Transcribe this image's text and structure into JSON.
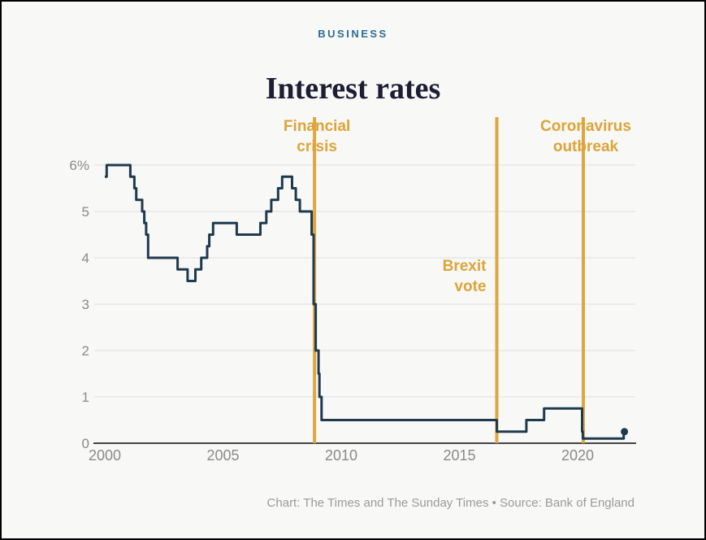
{
  "page": {
    "kicker": "BUSINESS",
    "title": "Interest rates",
    "footer": "Chart: The Times and The Sunday Times • Source: Bank of England"
  },
  "colors": {
    "accent_gold": "#dfa640",
    "line_navy": "#1f3a4d",
    "kicker_blue": "#2d6e93",
    "title_ink": "#1d1d33",
    "tick_gray": "#8a8a8a",
    "grid_gray": "#e3e3e2",
    "baseline_dark": "#454545",
    "background": "#f8f8f7"
  },
  "chart_data": {
    "type": "line",
    "line_style": "step-after",
    "title": "Interest rates",
    "xlabel": "",
    "ylabel": "",
    "ylim": [
      0,
      6
    ],
    "xlim": [
      1999.5,
      2022.4
    ],
    "grid": "horizontal-only",
    "legend": "none",
    "yticks": [
      {
        "value": 6,
        "label": "6%"
      },
      {
        "value": 5,
        "label": "5"
      },
      {
        "value": 4,
        "label": "4"
      },
      {
        "value": 3,
        "label": "3"
      },
      {
        "value": 2,
        "label": "2"
      },
      {
        "value": 1,
        "label": "1"
      },
      {
        "value": 0,
        "label": "0"
      }
    ],
    "xticks": [
      {
        "value": 2000,
        "label": "2000"
      },
      {
        "value": 2005,
        "label": "2005"
      },
      {
        "value": 2010,
        "label": "2010"
      },
      {
        "value": 2015,
        "label": "2015"
      },
      {
        "value": 2020,
        "label": "2020"
      }
    ],
    "series": [
      {
        "name": "UK interest rate (%)",
        "end_dot": true,
        "points": [
          [
            2000.0,
            5.75
          ],
          [
            2000.08,
            6.0
          ],
          [
            2001.08,
            5.75
          ],
          [
            2001.25,
            5.5
          ],
          [
            2001.33,
            5.25
          ],
          [
            2001.58,
            5.0
          ],
          [
            2001.67,
            4.75
          ],
          [
            2001.75,
            4.5
          ],
          [
            2001.83,
            4.0
          ],
          [
            2003.08,
            3.75
          ],
          [
            2003.5,
            3.5
          ],
          [
            2003.83,
            3.75
          ],
          [
            2004.08,
            4.0
          ],
          [
            2004.33,
            4.25
          ],
          [
            2004.42,
            4.5
          ],
          [
            2004.58,
            4.75
          ],
          [
            2005.58,
            4.5
          ],
          [
            2006.58,
            4.75
          ],
          [
            2006.83,
            5.0
          ],
          [
            2007.04,
            5.25
          ],
          [
            2007.33,
            5.5
          ],
          [
            2007.5,
            5.75
          ],
          [
            2007.92,
            5.5
          ],
          [
            2008.08,
            5.25
          ],
          [
            2008.25,
            5.0
          ],
          [
            2008.75,
            4.5
          ],
          [
            2008.83,
            3.0
          ],
          [
            2008.92,
            2.0
          ],
          [
            2009.04,
            1.5
          ],
          [
            2009.08,
            1.0
          ],
          [
            2009.17,
            0.5
          ],
          [
            2016.58,
            0.25
          ],
          [
            2017.83,
            0.5
          ],
          [
            2018.58,
            0.75
          ],
          [
            2020.19,
            0.25
          ],
          [
            2020.22,
            0.1
          ],
          [
            2021.95,
            0.25
          ],
          [
            2021.98,
            0.25
          ]
        ]
      }
    ],
    "annotations": [
      {
        "label": "Financial\ncrisis",
        "year": 2008.87,
        "align": "center",
        "position": "top"
      },
      {
        "label": "Brexit\nvote",
        "year": 2016.58,
        "align": "right",
        "position": "middle"
      },
      {
        "label": "Coronavirus\noutbreak",
        "year": 2020.24,
        "align": "center",
        "position": "top"
      }
    ]
  }
}
